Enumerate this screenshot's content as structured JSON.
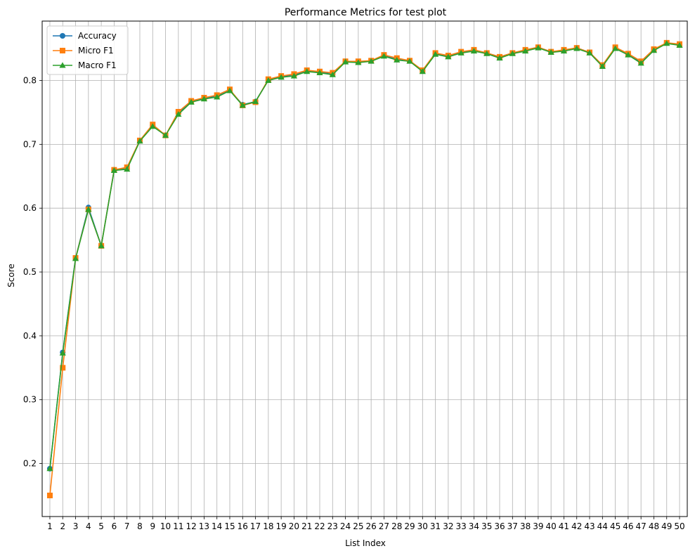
{
  "chart_data": {
    "type": "line",
    "title": "Performance Metrics for test plot",
    "xlabel": "List Index",
    "ylabel": "Score",
    "x": [
      1,
      2,
      3,
      4,
      5,
      6,
      7,
      8,
      9,
      10,
      11,
      12,
      13,
      14,
      15,
      16,
      17,
      18,
      19,
      20,
      21,
      22,
      23,
      24,
      25,
      26,
      27,
      28,
      29,
      30,
      31,
      32,
      33,
      34,
      35,
      36,
      37,
      38,
      39,
      40,
      41,
      42,
      43,
      44,
      45,
      46,
      47,
      48,
      49,
      50
    ],
    "y_ticks": [
      0.2,
      0.3,
      0.4,
      0.5,
      0.6,
      0.7,
      0.8
    ],
    "y_tick_labels": [
      "0.2",
      "0.3",
      "0.4",
      "0.5",
      "0.6",
      "0.7",
      "0.8"
    ],
    "ylim": [
      0.117,
      0.893
    ],
    "xlim": [
      0.4,
      50.6
    ],
    "grid": true,
    "legend_position": "top-left",
    "series": [
      {
        "name": "Accuracy",
        "color": "#1f77b4",
        "marker": "circle",
        "values": [
          0.192,
          0.374,
          0.522,
          0.601,
          0.541,
          0.66,
          0.662,
          0.706,
          0.729,
          0.714,
          0.749,
          0.767,
          0.772,
          0.776,
          0.785,
          0.762,
          0.767,
          0.801,
          0.806,
          0.809,
          0.815,
          0.813,
          0.811,
          0.83,
          0.829,
          0.831,
          0.839,
          0.834,
          0.831,
          0.815,
          0.842,
          0.838,
          0.844,
          0.848,
          0.843,
          0.837,
          0.843,
          0.848,
          0.852,
          0.845,
          0.847,
          0.851,
          0.844,
          0.824,
          0.851,
          0.841,
          0.829,
          0.848,
          0.859,
          0.856
        ]
      },
      {
        "name": "Micro F1",
        "color": "#ff7f0e",
        "marker": "square",
        "values": [
          0.15,
          0.35,
          0.522,
          0.598,
          0.541,
          0.66,
          0.664,
          0.706,
          0.731,
          0.714,
          0.751,
          0.768,
          0.773,
          0.777,
          0.786,
          0.761,
          0.766,
          0.802,
          0.807,
          0.81,
          0.816,
          0.814,
          0.812,
          0.83,
          0.83,
          0.831,
          0.84,
          0.835,
          0.831,
          0.816,
          0.843,
          0.839,
          0.845,
          0.848,
          0.843,
          0.837,
          0.843,
          0.848,
          0.852,
          0.845,
          0.848,
          0.851,
          0.844,
          0.824,
          0.852,
          0.842,
          0.83,
          0.849,
          0.859,
          0.857
        ]
      },
      {
        "name": "Macro F1",
        "color": "#2ca02c",
        "marker": "triangle",
        "values": [
          0.192,
          0.373,
          0.521,
          0.598,
          0.541,
          0.659,
          0.661,
          0.705,
          0.728,
          0.714,
          0.747,
          0.766,
          0.771,
          0.774,
          0.784,
          0.761,
          0.767,
          0.8,
          0.805,
          0.807,
          0.814,
          0.812,
          0.809,
          0.829,
          0.828,
          0.83,
          0.838,
          0.832,
          0.83,
          0.814,
          0.841,
          0.837,
          0.843,
          0.846,
          0.842,
          0.835,
          0.842,
          0.846,
          0.851,
          0.844,
          0.846,
          0.85,
          0.843,
          0.822,
          0.85,
          0.84,
          0.827,
          0.847,
          0.858,
          0.855
        ]
      }
    ]
  }
}
